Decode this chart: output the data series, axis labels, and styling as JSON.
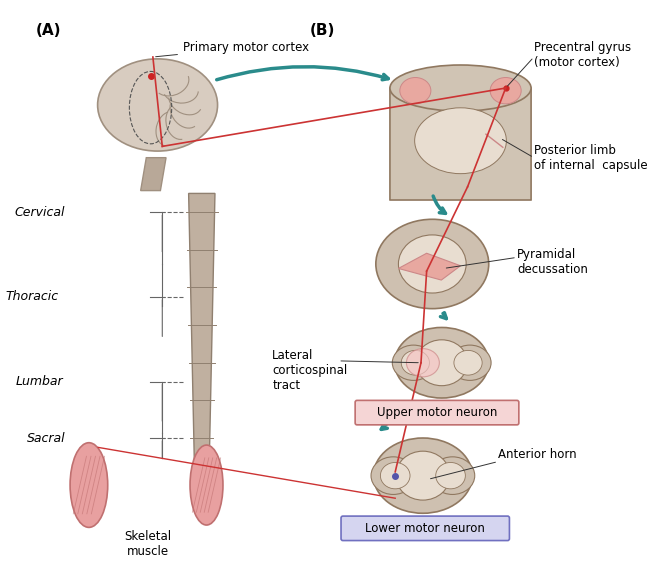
{
  "bg_color": "#ffffff",
  "title_A": "(A)",
  "title_B": "(B)",
  "label_primary_motor": "Primary motor cortex",
  "label_precentral": "Precentral gyrus\n(motor cortex)",
  "label_posterior_limb": "Posterior limb\nof internal  capsule",
  "label_pyramidal": "Pyramidal\ndecussation",
  "label_lateral": "Lateral\ncorticospinal\ntract",
  "label_upper": "Upper motor neuron",
  "label_lower": "Lower motor neuron",
  "label_anterior": "Anterior horn",
  "label_skeletal": "Skeletal\nmuscle",
  "label_cervical": "Cervical",
  "label_thoracic": "Thoracic",
  "label_lumbar": "Lumbar",
  "label_sacral": "Sacral",
  "teal_color": "#2a8b8b",
  "pink_color": "#e8a0a0",
  "light_pink": "#f5c5c5",
  "upper_box_color": "#f5d5d5",
  "lower_box_color": "#d5d5f0",
  "spine_color": "#c8b8a8",
  "brain_color": "#d8ccc0",
  "red_line": "#cc3333",
  "text_color": "#000000",
  "annotation_color": "#333333"
}
